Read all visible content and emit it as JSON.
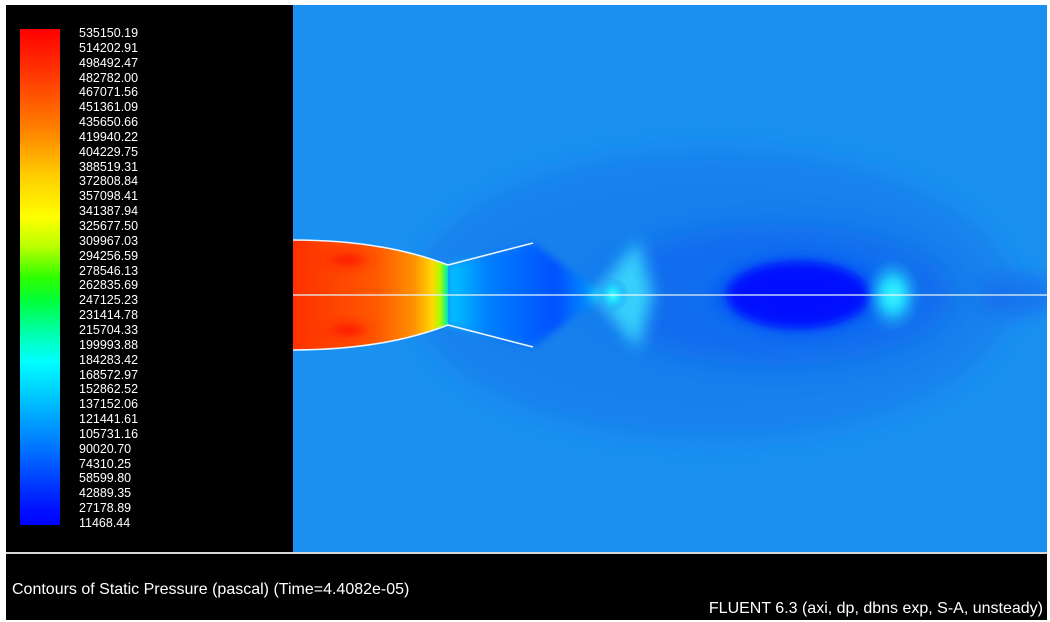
{
  "chart_data": {
    "type": "heatmap",
    "title": "Contours of Static Pressure (pascal)  (Time=4.4082e-05)",
    "colorbar": {
      "min": 11468.44,
      "max": 535150.19,
      "labels": [
        "535150.19",
        "514202.91",
        "498492.47",
        "482782.00",
        "467071.56",
        "451361.09",
        "435650.66",
        "419940.22",
        "404229.75",
        "388519.31",
        "372808.84",
        "357098.41",
        "341387.94",
        "325677.50",
        "309967.03",
        "294256.59",
        "278546.13",
        "262835.69",
        "247125.23",
        "231414.78",
        "215704.33",
        "199993.88",
        "184283.42",
        "168572.97",
        "152862.52",
        "137152.06",
        "121441.61",
        "105731.16",
        "90020.70",
        "74310.25",
        "58599.80",
        "42889.35",
        "27178.89",
        "11468.44"
      ],
      "colormap": "rainbow (blue = min, red = max)"
    },
    "colors": {
      "background_field": "#1a8ef0",
      "min_color": "#0000ff",
      "max_color": "#ff0000"
    },
    "solver_info": "FLUENT 6.3 (axi, dp, dbns exp, S-A, unsteady)"
  }
}
